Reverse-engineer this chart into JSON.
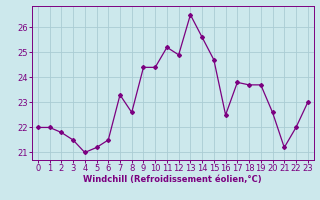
{
  "x": [
    0,
    1,
    2,
    3,
    4,
    5,
    6,
    7,
    8,
    9,
    10,
    11,
    12,
    13,
    14,
    15,
    16,
    17,
    18,
    19,
    20,
    21,
    22,
    23
  ],
  "y": [
    22.0,
    22.0,
    21.8,
    21.5,
    21.0,
    21.2,
    21.5,
    23.3,
    22.6,
    24.4,
    24.4,
    25.2,
    24.9,
    26.5,
    25.6,
    24.7,
    22.5,
    23.8,
    23.7,
    23.7,
    22.6,
    21.2,
    22.0,
    23.0
  ],
  "line_color": "#7b0080",
  "marker": "D",
  "marker_size": 2.0,
  "linewidth": 0.9,
  "xlabel": "Windchill (Refroidissement éolien,°C)",
  "xlabel_fontsize": 6.0,
  "ylim": [
    20.7,
    26.85
  ],
  "xlim": [
    -0.5,
    23.5
  ],
  "yticks": [
    21,
    22,
    23,
    24,
    25,
    26
  ],
  "xticks": [
    0,
    1,
    2,
    3,
    4,
    5,
    6,
    7,
    8,
    9,
    10,
    11,
    12,
    13,
    14,
    15,
    16,
    17,
    18,
    19,
    20,
    21,
    22,
    23
  ],
  "tick_fontsize": 6.0,
  "grid_color": "#aaccd4",
  "background_color": "#cce8ec"
}
